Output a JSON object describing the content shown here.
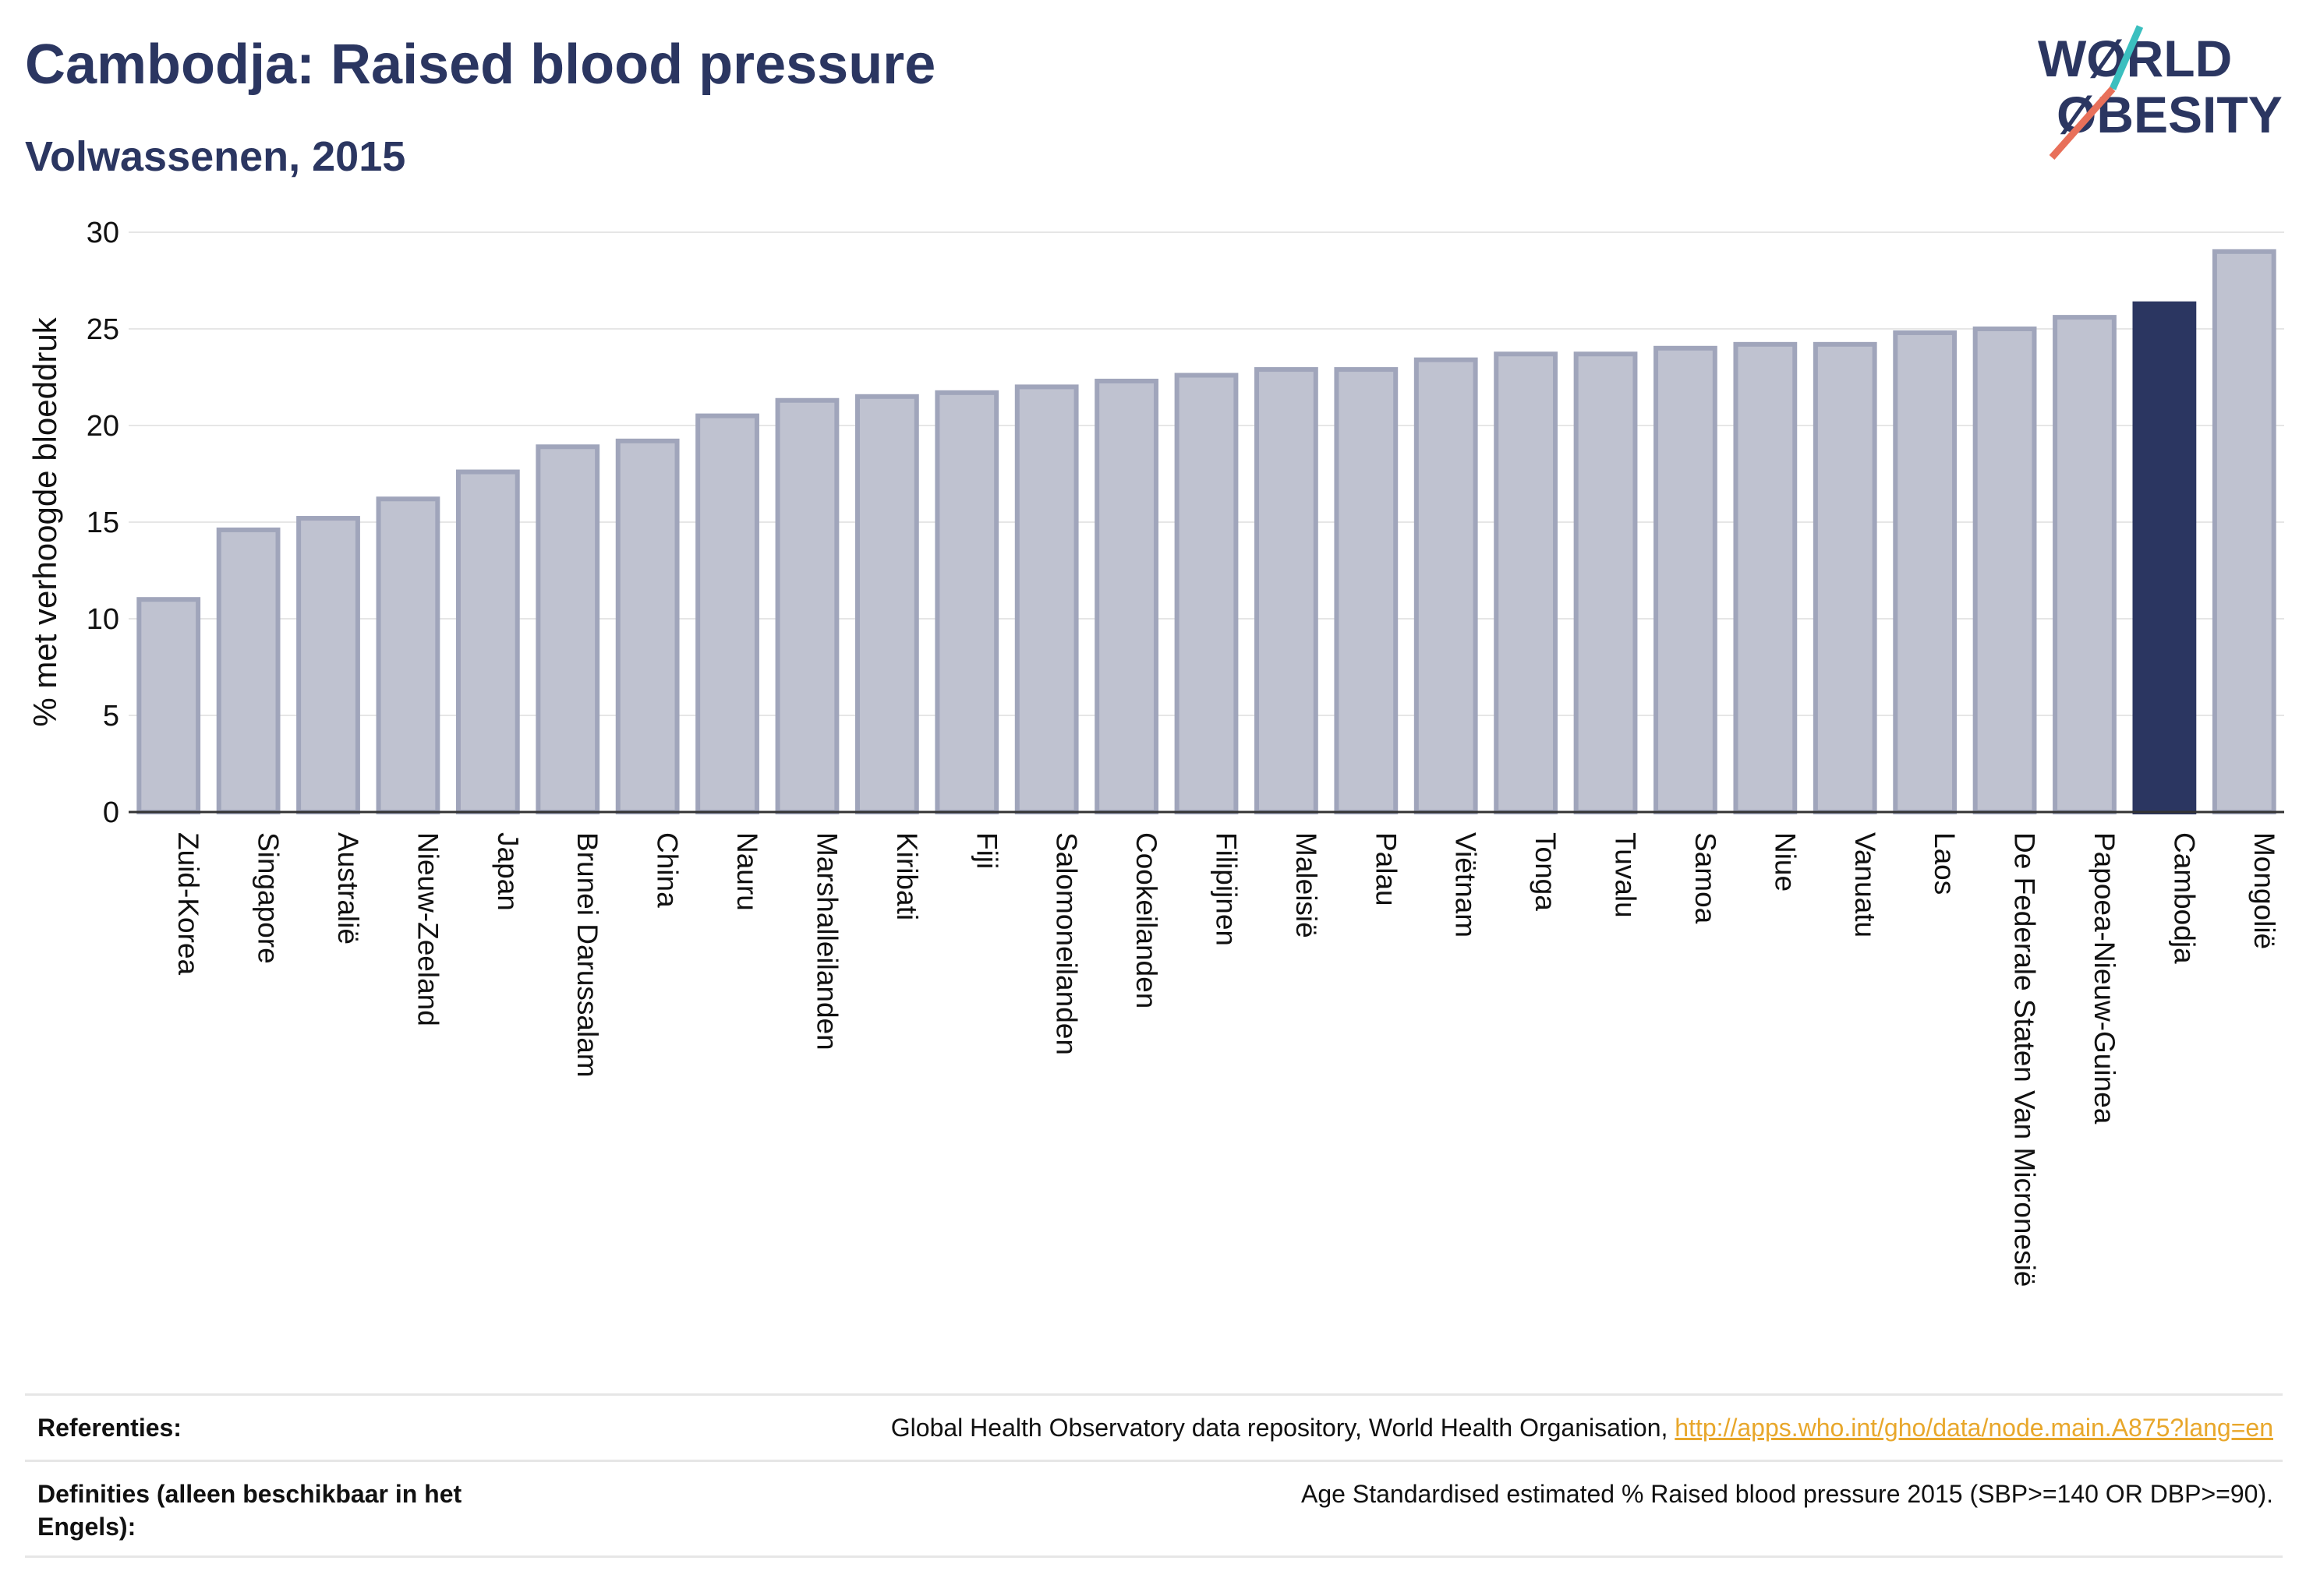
{
  "header": {
    "title": "Cambodja: Raised blood pressure",
    "subtitle": "Volwassenen, 2015"
  },
  "logo": {
    "line1": "WØRLD",
    "line2": "ØBESITY",
    "text_color": "#2b3661",
    "slash_colors": [
      "#3bbfbf",
      "#e8705a"
    ]
  },
  "chart_data": {
    "type": "bar",
    "title": "Cambodja: Raised blood pressure",
    "subtitle": "Volwassenen, 2015",
    "xlabel": "",
    "ylabel": "% met verhoogde bloeddruk",
    "ylim": [
      0,
      30
    ],
    "yticks": [
      0,
      5,
      10,
      15,
      20,
      25,
      30
    ],
    "grid": true,
    "highlight": "Cambodja",
    "colors": {
      "bar": "#bfc2d0",
      "bar_edge": "#a0a5bb",
      "highlight": "#2b3661"
    },
    "categories": [
      "Zuid-Korea",
      "Singapore",
      "Australië",
      "Nieuw-Zeeland",
      "Japan",
      "Brunei Darussalam",
      "China",
      "Nauru",
      "Marshalleilanden",
      "Kiribati",
      "Fiji",
      "Salomoneilanden",
      "Cookeilanden",
      "Filipijnen",
      "Maleisië",
      "Palau",
      "Viëtnam",
      "Tonga",
      "Tuvalu",
      "Samoa",
      "Niue",
      "Vanuatu",
      "Laos",
      "De Federale Staten Van Micronesië",
      "Papoea-Nieuw-Guinea",
      "Cambodja",
      "Mongolië"
    ],
    "values": [
      11.0,
      14.6,
      15.2,
      16.2,
      17.6,
      18.9,
      19.2,
      20.5,
      21.3,
      21.5,
      21.7,
      22.0,
      22.3,
      22.6,
      22.9,
      22.9,
      23.4,
      23.7,
      23.7,
      24.0,
      24.2,
      24.2,
      24.8,
      25.0,
      25.6,
      26.3,
      29.0
    ]
  },
  "footer": {
    "references_label": "Referenties:",
    "references_text": "Global Health Observatory data repository, World Health Organisation,",
    "references_link": "http://apps.who.int/gho/data/node.main.A875?lang=en",
    "definitions_label": "Definities (alleen beschikbaar in het Engels):",
    "definitions_text": "Age Standardised estimated % Raised blood pressure 2015 (SBP>=140 OR DBP>=90)."
  }
}
